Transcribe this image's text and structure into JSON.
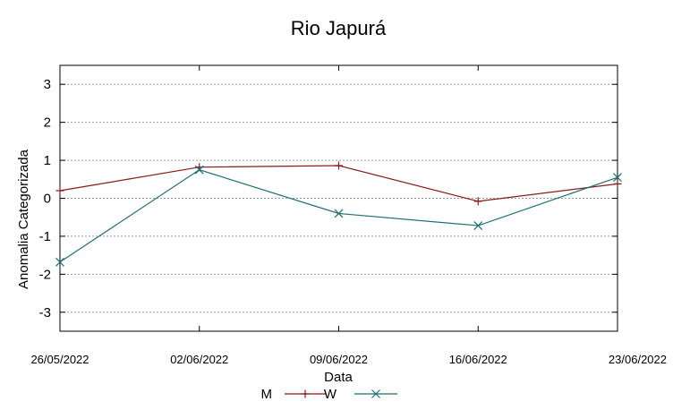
{
  "chart_data": {
    "type": "line",
    "title": "Rio Japurá",
    "xlabel": "Data",
    "ylabel": "Anomalia Categorizada",
    "categories": [
      "26/05/2022",
      "02/06/2022",
      "09/06/2022",
      "16/06/2022",
      "23/06/2022"
    ],
    "y_ticks": [
      "3",
      "2",
      "1",
      "0",
      "-1",
      "-2",
      "-3"
    ],
    "y_tick_values": [
      3,
      2,
      1,
      0,
      -1,
      -2,
      -3
    ],
    "ylim": [
      -3.5,
      3.5
    ],
    "grid": true,
    "legend_position": "bottom",
    "series": [
      {
        "name": "M",
        "values": [
          0.2,
          0.82,
          0.86,
          -0.08,
          0.38
        ],
        "color": "#8b1a1a",
        "marker": "plus"
      },
      {
        "name": "W",
        "values": [
          -1.68,
          0.75,
          -0.4,
          -0.72,
          0.55
        ],
        "color": "#1e6f75",
        "marker": "cross"
      }
    ]
  }
}
